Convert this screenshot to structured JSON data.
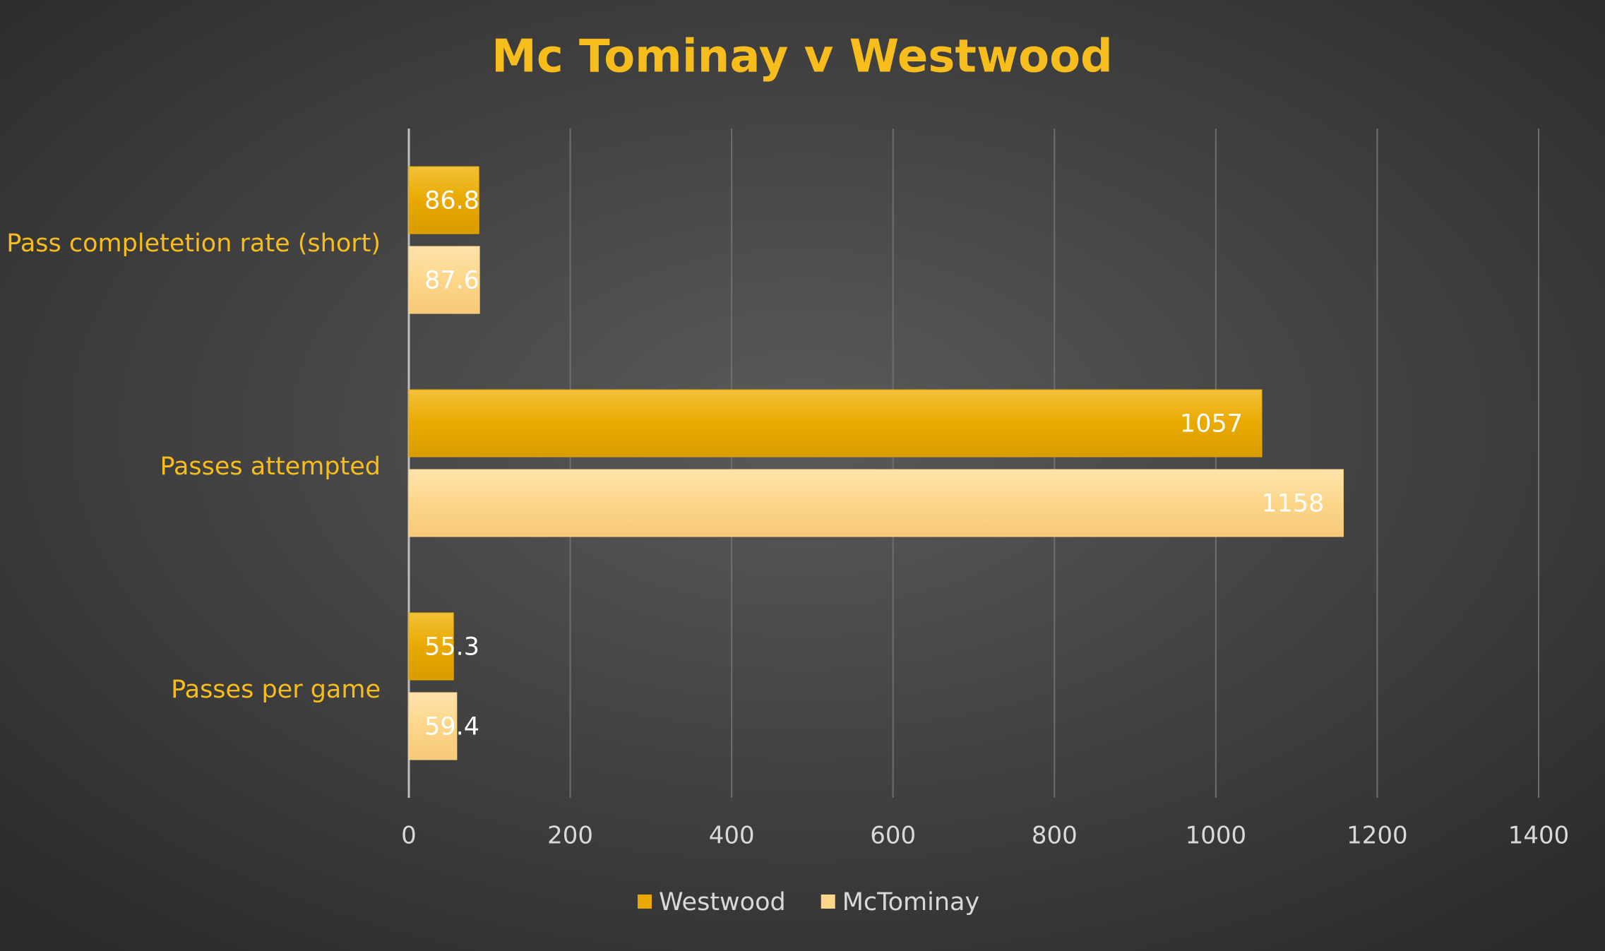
{
  "chart_data": {
    "type": "hbar",
    "title": "Mc Tominay v Westwood",
    "categories": [
      "Pass completetion rate (short)",
      "Passes attempted",
      "Passes per game"
    ],
    "series": [
      {
        "name": "Westwood",
        "color": "#e9a900",
        "values": [
          86.8,
          1057,
          55.3
        ]
      },
      {
        "name": "McTominay",
        "color": "#fdd68a",
        "values": [
          87.6,
          1158,
          59.4
        ]
      }
    ],
    "xlim": [
      0,
      1400
    ],
    "xticks": [
      0,
      200,
      400,
      600,
      800,
      1000,
      1200,
      1400
    ],
    "grid": true,
    "legend": "bottom"
  }
}
